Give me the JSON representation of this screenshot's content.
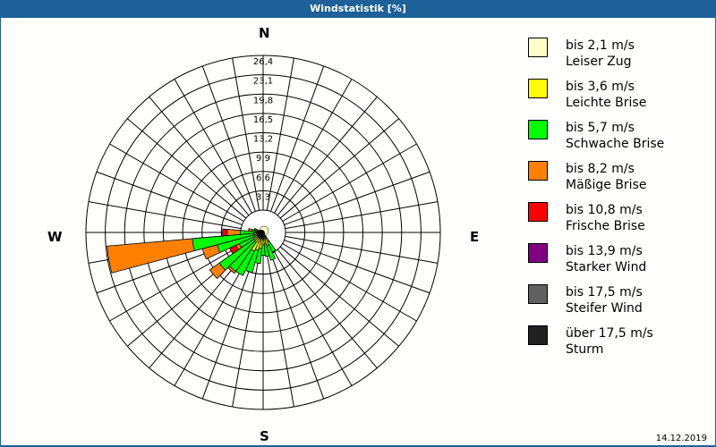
{
  "window": {
    "title": "Windstatistik [%]"
  },
  "compass": {
    "north": "N",
    "east": "E",
    "south": "S",
    "west": "W"
  },
  "date": "14.12.2019",
  "legend": [
    {
      "range": "bis 2,1 m/s",
      "name": "Leiser Zug",
      "color": "#ffffc8"
    },
    {
      "range": "bis 3,6 m/s",
      "name": "Leichte Brise",
      "color": "#ffff00"
    },
    {
      "range": "bis 5,7 m/s",
      "name": "Schwache Brise",
      "color": "#00ff00"
    },
    {
      "range": "bis 8,2 m/s",
      "name": "Mäßige Brise",
      "color": "#ff8000"
    },
    {
      "range": "bis 10,8 m/s",
      "name": "Frische Brise",
      "color": "#ff0000"
    },
    {
      "range": "bis 13,9 m/s",
      "name": "Starker Wind",
      "color": "#800080"
    },
    {
      "range": "bis 17,5 m/s",
      "name": "Steifer Wind",
      "color": "#606060"
    },
    {
      "range": "über 17,5 m/s",
      "name": "Sturm",
      "color": "#202020"
    }
  ],
  "chart_data": {
    "type": "windrose",
    "title": "Windstatistik [%]",
    "ring_labels": [
      "3,3",
      "6,6",
      "9,9",
      "13,2",
      "16,5",
      "19,8",
      "23,1",
      "26,4"
    ],
    "rmax": 26.4,
    "sector_width_deg": 10,
    "series_names": [
      "Leiser Zug",
      "Leichte Brise",
      "Schwache Brise",
      "Mäßige Brise",
      "Frische Brise",
      "Starker Wind",
      "Steifer Wind",
      "Sturm"
    ],
    "sectors": [
      {
        "dir": 150,
        "values": [
          0.2,
          0.6,
          2.0,
          0,
          0,
          0,
          0,
          0
        ]
      },
      {
        "dir": 160,
        "values": [
          0.2,
          1.2,
          2.6,
          0,
          0,
          0,
          0,
          0
        ]
      },
      {
        "dir": 170,
        "values": [
          0.2,
          0.8,
          2.2,
          0,
          0,
          0,
          0,
          0
        ]
      },
      {
        "dir": 180,
        "values": [
          0.2,
          1.0,
          1.8,
          0,
          0,
          0,
          0,
          0
        ]
      },
      {
        "dir": 190,
        "values": [
          0.2,
          1.6,
          2.6,
          0,
          0,
          0,
          0,
          0
        ]
      },
      {
        "dir": 200,
        "values": [
          0.2,
          2.0,
          4.0,
          0,
          0,
          0,
          0,
          0
        ]
      },
      {
        "dir": 210,
        "values": [
          0.2,
          2.4,
          4.6,
          0,
          0,
          0,
          0,
          0
        ]
      },
      {
        "dir": 220,
        "values": [
          0.2,
          1.0,
          6.0,
          0.4,
          0,
          0,
          0,
          0
        ]
      },
      {
        "dir": 230,
        "values": [
          0.2,
          0.8,
          7.2,
          2.0,
          0,
          0,
          0,
          0
        ]
      },
      {
        "dir": 240,
        "values": [
          0.2,
          0.6,
          2.8,
          0.6,
          1.2,
          0,
          0,
          0
        ]
      },
      {
        "dir": 250,
        "values": [
          0.2,
          0.4,
          6.6,
          2.6,
          0,
          0,
          0,
          0
        ]
      },
      {
        "dir": 260,
        "values": [
          0.2,
          0.6,
          10.4,
          14.6,
          0,
          0,
          0,
          0
        ]
      },
      {
        "dir": 270,
        "values": [
          0.2,
          0.4,
          2.4,
          2.2,
          0.8,
          0,
          0,
          0
        ]
      },
      {
        "dir": 280,
        "values": [
          0.2,
          0.2,
          0.6,
          0.6,
          0,
          0,
          0,
          0
        ]
      },
      {
        "dir": 290,
        "values": [
          0.2,
          0.2,
          0.3,
          0,
          0,
          0,
          0,
          0
        ]
      }
    ],
    "legend_position": "right"
  }
}
